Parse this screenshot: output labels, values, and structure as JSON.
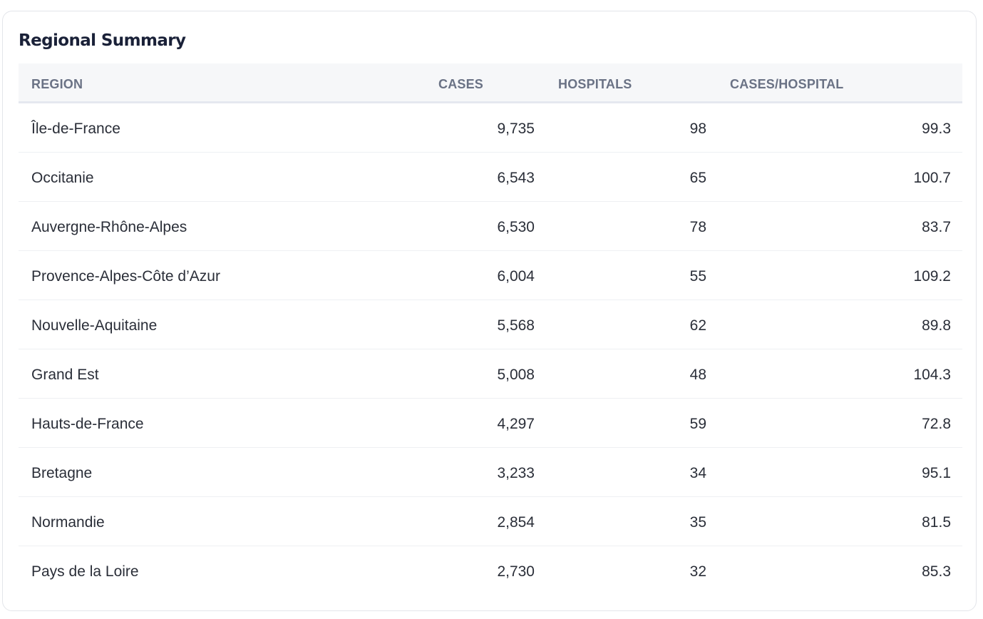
{
  "panel": {
    "title": "Regional Summary"
  },
  "table": {
    "columns": [
      "REGION",
      "CASES",
      "HOSPITALS",
      "CASES/HOSPITAL"
    ],
    "rows": [
      {
        "region": "Île-de-France",
        "cases": "9,735",
        "hospitals": "98",
        "cases_per_hospital": "99.3"
      },
      {
        "region": "Occitanie",
        "cases": "6,543",
        "hospitals": "65",
        "cases_per_hospital": "100.7"
      },
      {
        "region": "Auvergne-Rhône-Alpes",
        "cases": "6,530",
        "hospitals": "78",
        "cases_per_hospital": "83.7"
      },
      {
        "region": "Provence-Alpes-Côte d’Azur",
        "cases": "6,004",
        "hospitals": "55",
        "cases_per_hospital": "109.2"
      },
      {
        "region": "Nouvelle-Aquitaine",
        "cases": "5,568",
        "hospitals": "62",
        "cases_per_hospital": "89.8"
      },
      {
        "region": "Grand Est",
        "cases": "5,008",
        "hospitals": "48",
        "cases_per_hospital": "104.3"
      },
      {
        "region": "Hauts-de-France",
        "cases": "4,297",
        "hospitals": "59",
        "cases_per_hospital": "72.8"
      },
      {
        "region": "Bretagne",
        "cases": "3,233",
        "hospitals": "34",
        "cases_per_hospital": "95.1"
      },
      {
        "region": "Normandie",
        "cases": "2,854",
        "hospitals": "35",
        "cases_per_hospital": "81.5"
      },
      {
        "region": "Pays de la Loire",
        "cases": "2,730",
        "hospitals": "32",
        "cases_per_hospital": "85.3"
      }
    ]
  }
}
